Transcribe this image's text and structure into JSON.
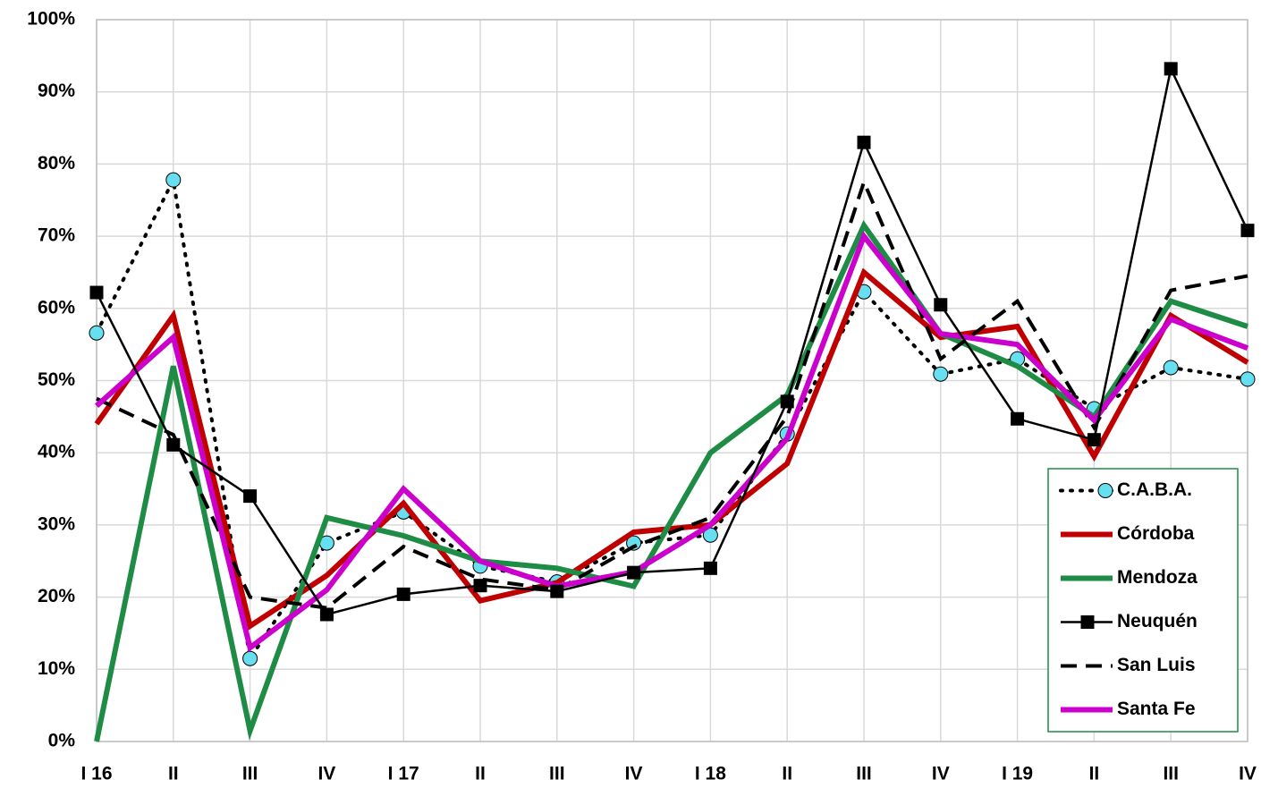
{
  "chart_data": {
    "type": "line",
    "categories": [
      "I 16",
      "II",
      "III",
      "IV",
      "I 17",
      "II",
      "III",
      "IV",
      "I 18",
      "II",
      "III",
      "IV",
      "I 19",
      "II",
      "III",
      "IV"
    ],
    "ylim": [
      0,
      100
    ],
    "yticks": [
      {
        "value": 0,
        "label": "0%"
      },
      {
        "value": 10,
        "label": "10%"
      },
      {
        "value": 20,
        "label": "20%"
      },
      {
        "value": 30,
        "label": "30%"
      },
      {
        "value": 40,
        "label": "40%"
      },
      {
        "value": 50,
        "label": "50%"
      },
      {
        "value": 60,
        "label": "60%"
      },
      {
        "value": 70,
        "label": "70%"
      },
      {
        "value": 80,
        "label": "80%"
      },
      {
        "value": 90,
        "label": "90%"
      },
      {
        "value": 100,
        "label": "100%"
      }
    ],
    "grid": true,
    "legend": "lower right",
    "series": [
      {
        "name": "C.A.B.A.",
        "color": "#000000",
        "marker_color": "#66e0f0",
        "width": 4,
        "dash": "dotted",
        "marker": "circle",
        "values": [
          56.6,
          77.8,
          11.5,
          27.5,
          31.8,
          24.3,
          22.1,
          27.5,
          28.6,
          42.6,
          62.3,
          50.9,
          53,
          46.1,
          51.8,
          50.2
        ]
      },
      {
        "name": "Córdoba",
        "color": "#c00000",
        "width": 6,
        "dash": "solid",
        "marker": "none",
        "values": [
          44,
          59,
          16,
          23,
          33,
          19.5,
          22,
          29,
          30,
          38.5,
          65,
          56,
          57.5,
          39.5,
          59,
          52.5
        ]
      },
      {
        "name": "Mendoza",
        "color": "#1e8c45",
        "width": 6,
        "dash": "solid",
        "marker": "none",
        "values": [
          0,
          52,
          1.5,
          31,
          28.5,
          25,
          24,
          21.5,
          40,
          48,
          71.5,
          56.5,
          52,
          45,
          61,
          57.5
        ]
      },
      {
        "name": "Neuquén",
        "color": "#000000",
        "marker_color": "#000000",
        "width": 2.5,
        "dash": "solid",
        "marker": "square",
        "values": [
          62.2,
          41.1,
          34,
          17.6,
          20.4,
          21.6,
          20.8,
          23.4,
          24,
          47.1,
          83,
          60.5,
          44.7,
          41.8,
          93.2,
          70.8
        ]
      },
      {
        "name": "San Luis",
        "color": "#000000",
        "width": 4,
        "dash": "dashed",
        "marker": "none",
        "values": [
          47.5,
          42.5,
          20,
          18.5,
          27,
          22.5,
          21,
          27,
          31,
          45,
          77.5,
          53,
          61,
          43.5,
          62.5,
          64.5
        ]
      },
      {
        "name": "Santa Fe",
        "color": "#cc00cc",
        "width": 6,
        "dash": "solid",
        "marker": "none",
        "values": [
          46.5,
          56,
          13,
          21,
          35,
          25,
          21.5,
          23.5,
          30,
          42,
          70,
          56.5,
          55,
          44.5,
          58.5,
          54.5
        ]
      }
    ]
  }
}
